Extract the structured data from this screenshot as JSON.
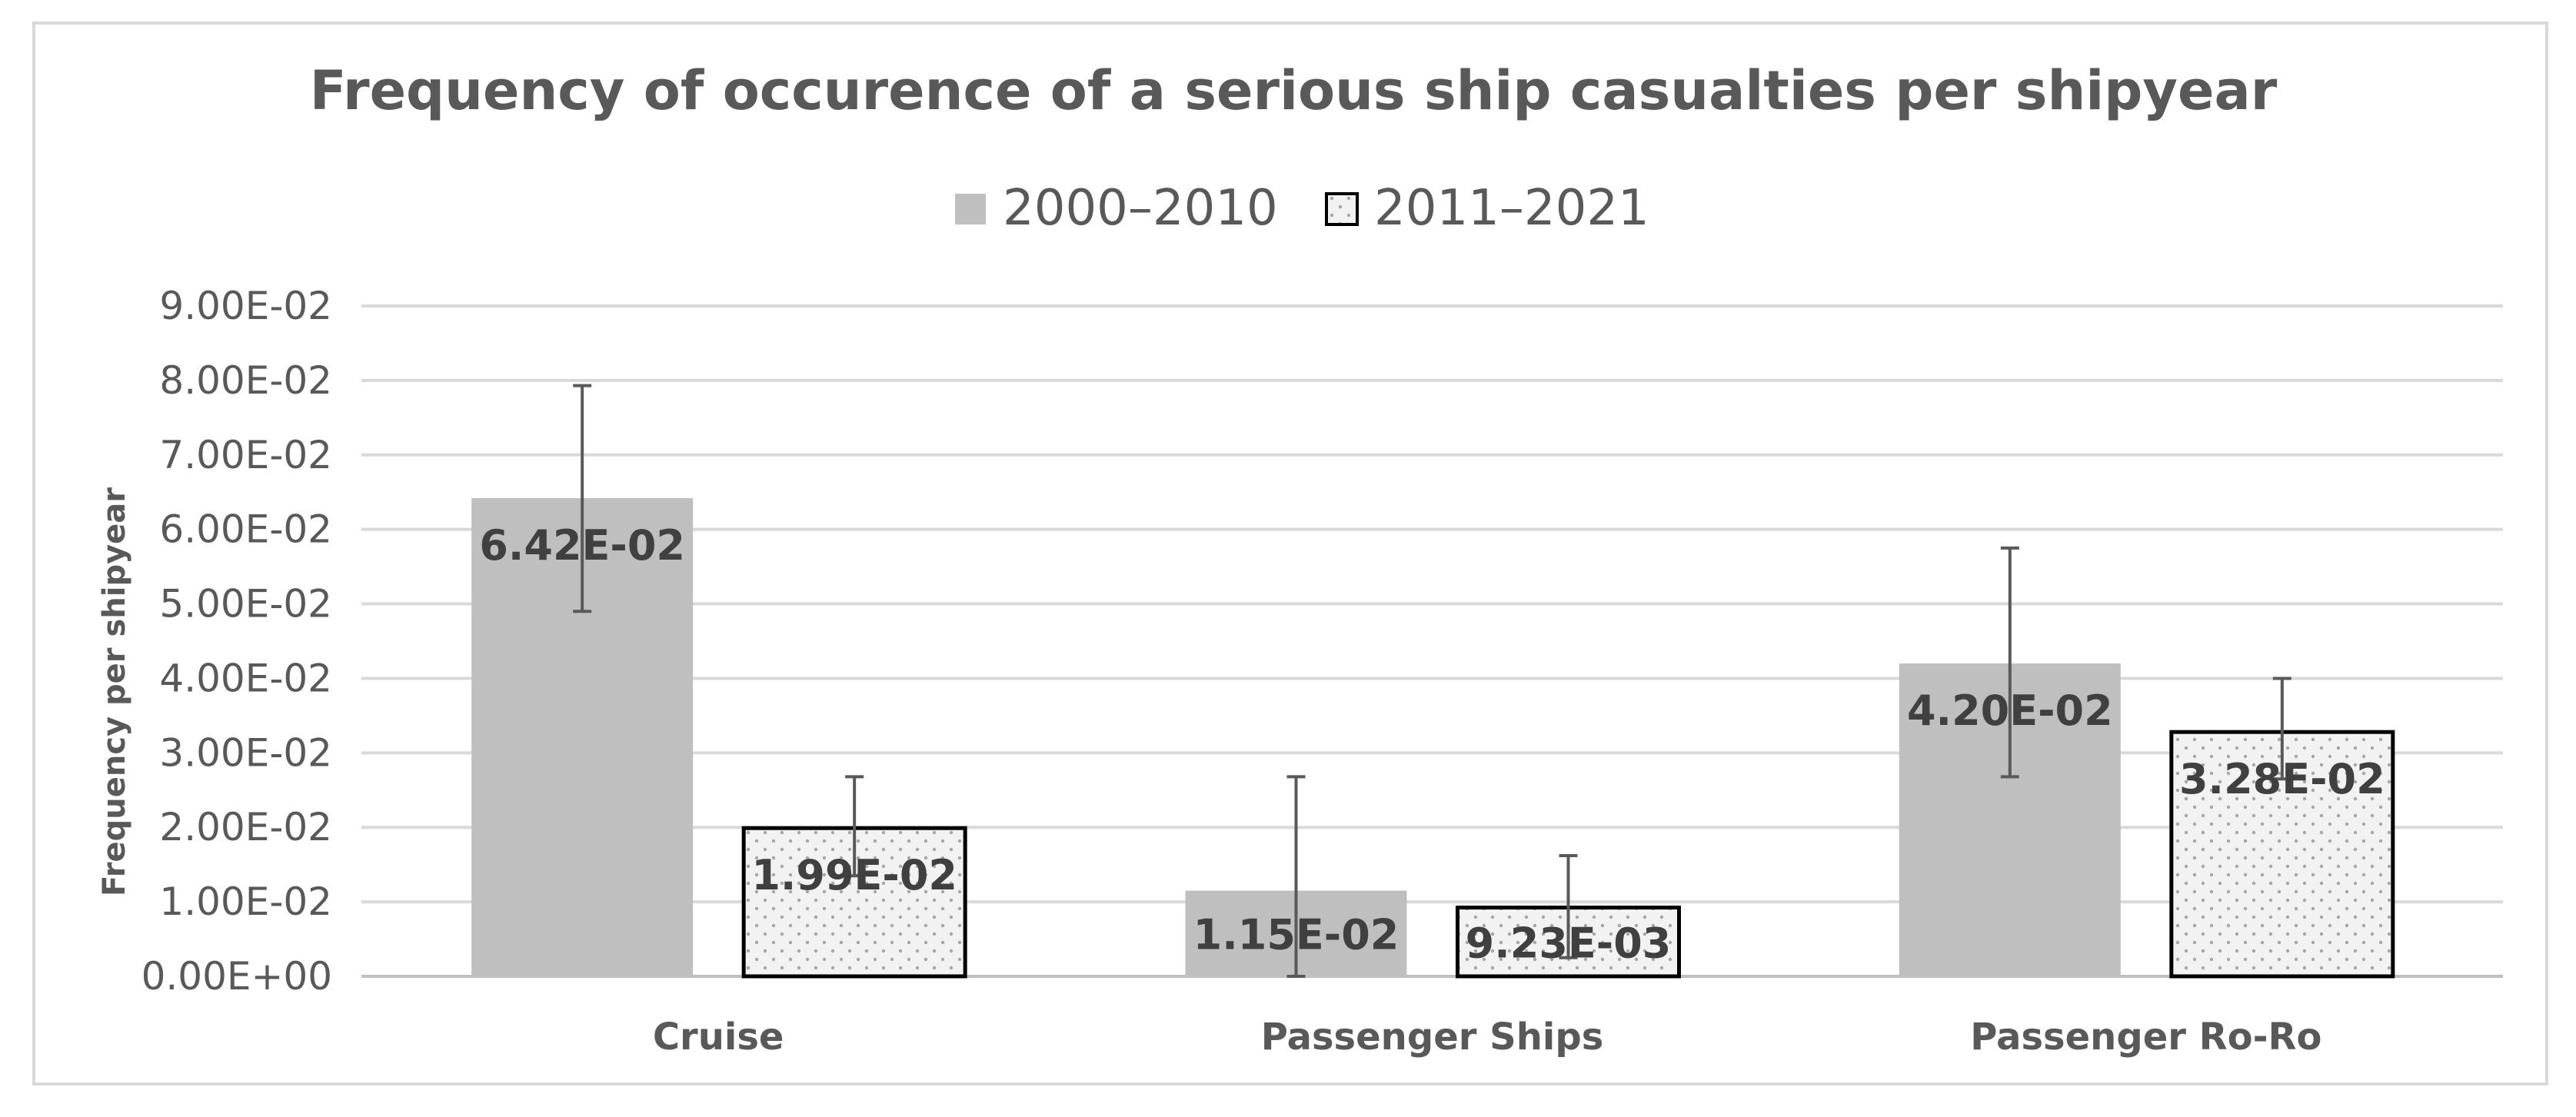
{
  "chart_data": {
    "type": "bar",
    "title": "Frequency of occurence of a serious ship casualties per shipyear",
    "xlabel": "",
    "ylabel": "Frequency per shipyear",
    "categories": [
      "Cruise",
      "Passenger Ships",
      "Passenger Ro-Ro"
    ],
    "series": [
      {
        "name": "2000–2010",
        "values": [
          0.0642,
          0.0115,
          0.042
        ],
        "labels": [
          "6.42E-02",
          "1.15E-02",
          "4.20E-02"
        ],
        "error_low": [
          0.049,
          0.0,
          0.0268
        ],
        "error_high": [
          0.0793,
          0.0268,
          0.0575
        ],
        "color": "#bfbfbf"
      },
      {
        "name": "2011–2021",
        "values": [
          0.0199,
          0.00923,
          0.0328
        ],
        "labels": [
          "1.99E-02",
          "9.23E-03",
          "3.28E-02"
        ],
        "error_low": [
          0.0135,
          0.0025,
          0.0265
        ],
        "error_high": [
          0.0268,
          0.0162,
          0.04
        ],
        "color": "#f2f2f2"
      }
    ],
    "ylim": [
      0,
      0.09
    ],
    "yticks": [
      0,
      0.01,
      0.02,
      0.03,
      0.04,
      0.05,
      0.06,
      0.07,
      0.08,
      0.09
    ],
    "ytick_labels": [
      "0.00E+00",
      "1.00E-02",
      "2.00E-02",
      "3.00E-02",
      "4.00E-02",
      "5.00E-02",
      "6.00E-02",
      "7.00E-02",
      "8.00E-02",
      "9.00E-02"
    ],
    "grid": true,
    "legend_position": "top-center"
  }
}
